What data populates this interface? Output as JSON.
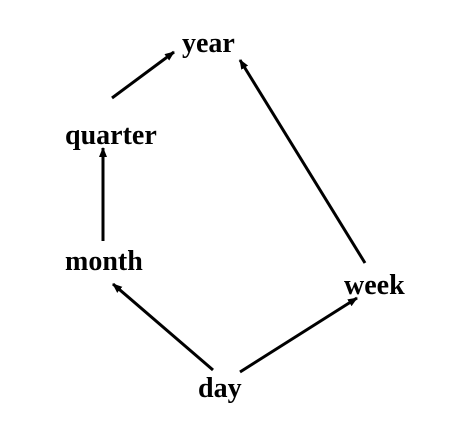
{
  "diagram": {
    "type": "hierarchy",
    "nodes": [
      {
        "id": "year",
        "label": "year"
      },
      {
        "id": "quarter",
        "label": "quarter"
      },
      {
        "id": "month",
        "label": "month"
      },
      {
        "id": "week",
        "label": "week"
      },
      {
        "id": "day",
        "label": "day"
      }
    ],
    "edges": [
      {
        "from": "day",
        "to": "month"
      },
      {
        "from": "day",
        "to": "week"
      },
      {
        "from": "month",
        "to": "quarter"
      },
      {
        "from": "quarter",
        "to": "year"
      },
      {
        "from": "week",
        "to": "year"
      }
    ]
  },
  "colors": {
    "text": "#000000",
    "edge": "#000000",
    "background": "#ffffff"
  }
}
